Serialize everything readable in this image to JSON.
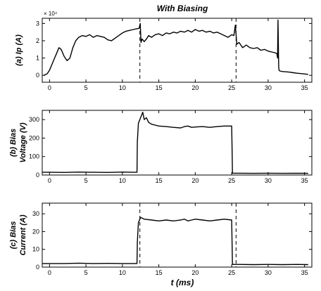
{
  "title": "With Biasing",
  "xlabel": "t (ms)",
  "colors": {
    "line": "#000000",
    "axes": "#000000",
    "background": "#ffffff"
  },
  "chart_data": [
    {
      "type": "line",
      "ylabel_lines": [
        "(a) Ip (A)"
      ],
      "y_multiplier": "× 10⁴",
      "xlim": [
        -1,
        36
      ],
      "ylim": [
        -0.4,
        3.3
      ],
      "xticks": [
        0,
        5,
        10,
        15,
        20,
        25,
        30,
        35
      ],
      "yticks": [
        0,
        1,
        2,
        3
      ],
      "vlines": [
        12.4,
        25.6
      ],
      "x": [
        -0.8,
        -0.3,
        0,
        0.5,
        1,
        1.3,
        1.6,
        2,
        2.4,
        2.8,
        3.2,
        3.6,
        4,
        4.5,
        5,
        5.5,
        6,
        6.5,
        7,
        7.5,
        8,
        8.5,
        9,
        9.5,
        10,
        10.5,
        11,
        11.5,
        12,
        12.3,
        12.45,
        12.55,
        12.7,
        13,
        13.3,
        13.6,
        14,
        14.5,
        15,
        15.5,
        16,
        16.5,
        17,
        17.5,
        18,
        18.5,
        19,
        19.5,
        20,
        20.5,
        21,
        21.5,
        22,
        22.5,
        23,
        23.5,
        24,
        24.5,
        25,
        25.3,
        25.5,
        25.7,
        26,
        26.5,
        27,
        27.5,
        28,
        28.5,
        29,
        29.5,
        30,
        30.5,
        31,
        31.2,
        31.3,
        31.35,
        31.45,
        31.5,
        31.6,
        32,
        32.5,
        33,
        33.5,
        34,
        34.5,
        35,
        35.5
      ],
      "y": [
        0.0,
        0.1,
        0.3,
        0.8,
        1.3,
        1.6,
        1.5,
        1.1,
        0.85,
        1.0,
        1.6,
        2.0,
        2.2,
        2.3,
        2.25,
        2.35,
        2.2,
        2.3,
        2.25,
        2.2,
        2.05,
        2.0,
        2.15,
        2.3,
        2.45,
        2.55,
        2.6,
        2.65,
        2.7,
        2.72,
        3.0,
        1.9,
        2.1,
        1.95,
        2.1,
        2.3,
        2.2,
        2.35,
        2.4,
        2.3,
        2.45,
        2.4,
        2.5,
        2.45,
        2.55,
        2.5,
        2.6,
        2.5,
        2.65,
        2.55,
        2.6,
        2.5,
        2.55,
        2.45,
        2.5,
        2.4,
        2.3,
        2.2,
        2.35,
        2.3,
        2.9,
        1.8,
        1.9,
        1.6,
        1.75,
        1.6,
        1.55,
        1.6,
        1.45,
        1.5,
        1.4,
        1.35,
        1.3,
        1.25,
        1.0,
        3.2,
        0.5,
        0.3,
        0.25,
        0.22,
        0.2,
        0.18,
        0.15,
        0.12,
        0.1,
        0.08,
        0.05
      ]
    },
    {
      "type": "line",
      "ylabel_lines": [
        "(b) Bias",
        "Voltage (V)"
      ],
      "xlim": [
        -1,
        36
      ],
      "ylim": [
        0,
        350
      ],
      "xticks": [
        0,
        5,
        10,
        15,
        20,
        25,
        30,
        35
      ],
      "yticks": [
        0,
        100,
        200,
        300
      ],
      "vlines": [],
      "x": [
        -1,
        0,
        2,
        4,
        6,
        8,
        10,
        11.5,
        12,
        12.05,
        12.2,
        12.5,
        12.8,
        13,
        13.3,
        13.6,
        14,
        14.5,
        15,
        16,
        17,
        18,
        18.5,
        19,
        19.5,
        20,
        21,
        22,
        23,
        24,
        25,
        25.05,
        25.1,
        26,
        28,
        30,
        32,
        34,
        35.5
      ],
      "y": [
        15,
        15,
        14,
        16,
        15,
        14,
        16,
        15,
        15,
        180,
        280,
        310,
        340,
        300,
        310,
        285,
        275,
        270,
        265,
        262,
        258,
        255,
        262,
        265,
        258,
        260,
        262,
        258,
        262,
        265,
        265,
        140,
        10,
        10,
        9,
        10,
        9,
        10,
        9
      ]
    },
    {
      "type": "line",
      "ylabel_lines": [
        "(c) Bias",
        "Current (A)"
      ],
      "xlim": [
        -1,
        36
      ],
      "ylim": [
        0,
        36
      ],
      "xticks": [
        0,
        5,
        10,
        15,
        20,
        25,
        30,
        35
      ],
      "yticks": [
        0,
        10,
        20,
        30
      ],
      "vlines": [
        12.4,
        25.6
      ],
      "x": [
        -1,
        0,
        2,
        4,
        6,
        8,
        10,
        11.5,
        12,
        12.05,
        12.2,
        12.5,
        13,
        14,
        15,
        16,
        17,
        18,
        18.5,
        19,
        19.5,
        20,
        21,
        22,
        23,
        24,
        25,
        25.05,
        25.1,
        26,
        28,
        30,
        32,
        34,
        35.5
      ],
      "y": [
        2,
        2,
        2,
        2.2,
        2,
        2.1,
        2,
        2,
        2,
        14,
        25,
        28,
        27,
        26.5,
        26,
        26.5,
        26,
        26.5,
        27,
        26,
        26.5,
        27,
        26.5,
        26,
        26.5,
        27,
        26.5,
        13,
        1.5,
        1.5,
        1.4,
        1.5,
        1.4,
        1.5,
        1.4
      ]
    }
  ]
}
